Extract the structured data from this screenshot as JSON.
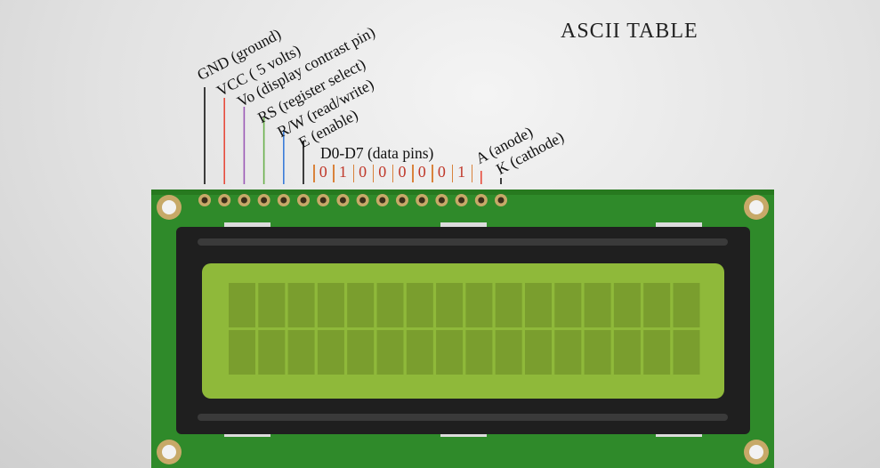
{
  "title": "ASCII TABLE",
  "pin_labels": [
    {
      "text": "GND (ground)",
      "color": "#111111"
    },
    {
      "text": "VCC ( 5 volts)",
      "color": "#e74c3c"
    },
    {
      "text": "Vo (display contrast pin)",
      "color": "#9b59b6"
    },
    {
      "text": "RS (register select)",
      "color": "#6ab04c"
    },
    {
      "text": "R/W (read/write)",
      "color": "#3b7dd8"
    },
    {
      "text": "E (enable)",
      "color": "#111111"
    }
  ],
  "data_pins_label": "D0-D7 (data pins)",
  "data_bits": [
    "0",
    "1",
    "0",
    "0",
    "0",
    "0",
    "0",
    "1"
  ],
  "backlight_labels": [
    {
      "text": "A (anode)",
      "color": "#e74c3c"
    },
    {
      "text": "K (cathode)",
      "color": "#111111"
    }
  ],
  "colors": {
    "pcb": "#2f8a2a",
    "pcb_dark": "#1f6a1c",
    "bezel": "#1f1f1f",
    "lcd": "#8fb93a",
    "lcd_cell": "#7a9e2e",
    "bit": "#c0392b",
    "data_line": "#d9823b"
  },
  "display": {
    "rows": 2,
    "columns": 16
  }
}
